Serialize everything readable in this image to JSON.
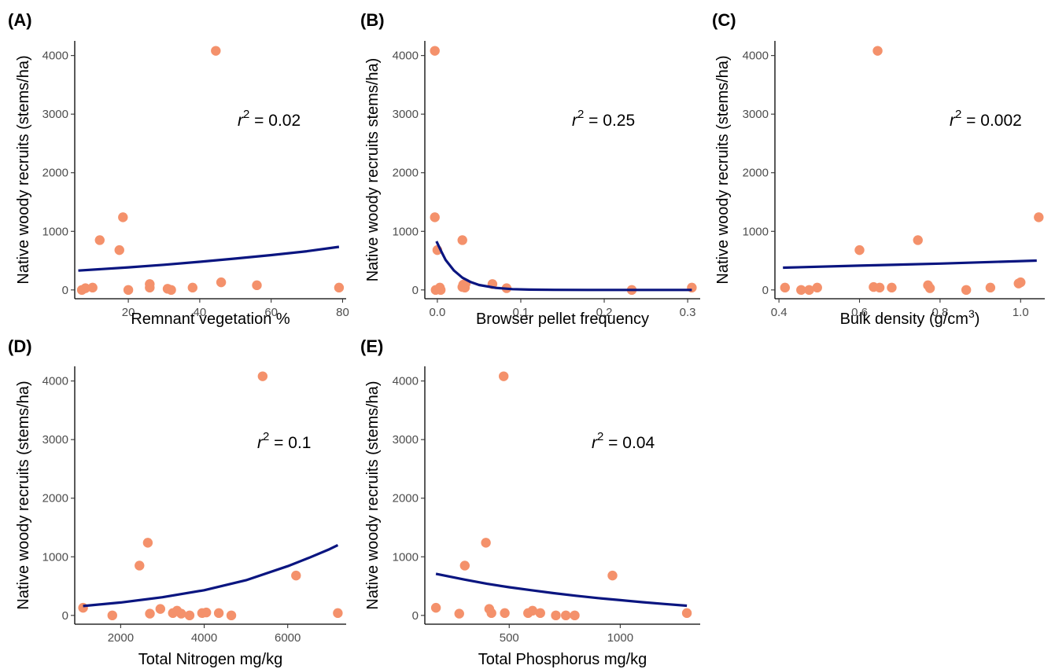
{
  "chart_data": [
    {
      "type": "scatter",
      "panel": "(A)",
      "xlabel": "Remnant vegetation %",
      "ylabel": "Native woody recruits (stems/ha)",
      "annotation": {
        "r2": "0.02"
      },
      "xlim": [
        5,
        81
      ],
      "ylim": [
        -150,
        4250
      ],
      "xticks": [
        20,
        40,
        60,
        80
      ],
      "yticks": [
        0,
        1000,
        2000,
        3000,
        4000
      ],
      "point_color": "#f4916b",
      "fit_color": "#0a1580",
      "points": [
        {
          "x": 7,
          "y": 0
        },
        {
          "x": 8,
          "y": 30
        },
        {
          "x": 10,
          "y": 40
        },
        {
          "x": 12,
          "y": 850
        },
        {
          "x": 17.5,
          "y": 680
        },
        {
          "x": 18.5,
          "y": 1240
        },
        {
          "x": 20,
          "y": 0
        },
        {
          "x": 26,
          "y": 40
        },
        {
          "x": 26,
          "y": 100
        },
        {
          "x": 31,
          "y": 20
        },
        {
          "x": 32,
          "y": 0
        },
        {
          "x": 38,
          "y": 40
        },
        {
          "x": 44.5,
          "y": 4080
        },
        {
          "x": 46,
          "y": 130
        },
        {
          "x": 56,
          "y": 80
        },
        {
          "x": 79,
          "y": 40
        }
      ],
      "fit": {
        "x": [
          6,
          20,
          30,
          40,
          50,
          60,
          70,
          79
        ],
        "y": [
          330,
          385,
          430,
          480,
          535,
          595,
          660,
          735
        ]
      }
    },
    {
      "type": "scatter",
      "panel": "(B)",
      "xlabel": "Browser pellet frequency",
      "ylabel": "Native woody recruits stems/ha)",
      "annotation": {
        "r2": "0.25"
      },
      "xlim": [
        -0.015,
        0.315
      ],
      "ylim": [
        -150,
        4250
      ],
      "xticks": [
        0.0,
        0.1,
        0.2,
        0.3
      ],
      "yticks": [
        0,
        1000,
        2000,
        3000,
        4000
      ],
      "point_color": "#f4916b",
      "fit_color": "#0a1580",
      "points": [
        {
          "x": -0.003,
          "y": 4080
        },
        {
          "x": -0.003,
          "y": 1240
        },
        {
          "x": -0.002,
          "y": 0
        },
        {
          "x": 0.0,
          "y": 680
        },
        {
          "x": 0.003,
          "y": 40
        },
        {
          "x": 0.004,
          "y": 0
        },
        {
          "x": 0.03,
          "y": 850
        },
        {
          "x": 0.03,
          "y": 50
        },
        {
          "x": 0.031,
          "y": 90
        },
        {
          "x": 0.033,
          "y": 40
        },
        {
          "x": 0.034,
          "y": 110
        },
        {
          "x": 0.066,
          "y": 100
        },
        {
          "x": 0.083,
          "y": 30
        },
        {
          "x": 0.233,
          "y": 0
        },
        {
          "x": 0.305,
          "y": 40
        }
      ],
      "fit": {
        "x": [
          -0.001,
          0.005,
          0.01,
          0.02,
          0.03,
          0.04,
          0.05,
          0.07,
          0.09,
          0.11,
          0.14,
          0.18,
          0.22,
          0.26,
          0.305
        ],
        "y": [
          830,
          650,
          510,
          330,
          210,
          135,
          85,
          35,
          14,
          6,
          2,
          0,
          0,
          0,
          0
        ]
      }
    },
    {
      "type": "scatter",
      "panel": "(C)",
      "xlabel": "Bulk density (g/cm",
      "xlabel_sup": "3",
      "xlabel_tail": ")",
      "ylabel": "Native woody recruits (stems/ha)",
      "annotation": {
        "r2": "0.002"
      },
      "xlim": [
        0.39,
        1.06
      ],
      "ylim": [
        -150,
        4250
      ],
      "xticks": [
        0.4,
        0.6,
        0.8,
        1.0
      ],
      "yticks": [
        0,
        1000,
        2000,
        3000,
        4000
      ],
      "point_color": "#f4916b",
      "fit_color": "#0a1580",
      "points": [
        {
          "x": 0.415,
          "y": 40
        },
        {
          "x": 0.455,
          "y": 0
        },
        {
          "x": 0.475,
          "y": 0
        },
        {
          "x": 0.495,
          "y": 40
        },
        {
          "x": 0.6,
          "y": 680
        },
        {
          "x": 0.635,
          "y": 50
        },
        {
          "x": 0.645,
          "y": 4080
        },
        {
          "x": 0.65,
          "y": 40
        },
        {
          "x": 0.68,
          "y": 40
        },
        {
          "x": 0.745,
          "y": 850
        },
        {
          "x": 0.77,
          "y": 80
        },
        {
          "x": 0.775,
          "y": 30
        },
        {
          "x": 0.865,
          "y": 0
        },
        {
          "x": 0.925,
          "y": 40
        },
        {
          "x": 0.995,
          "y": 110
        },
        {
          "x": 1.0,
          "y": 130
        },
        {
          "x": 1.045,
          "y": 1240
        }
      ],
      "fit": {
        "x": [
          0.41,
          0.6,
          0.8,
          1.04
        ],
        "y": [
          380,
          415,
          450,
          500
        ]
      }
    },
    {
      "type": "scatter",
      "panel": "(D)",
      "xlabel": "Total Nitrogen mg/kg",
      "ylabel": "Native woody recruits (stems/ha)",
      "annotation": {
        "r2": "0.1"
      },
      "xlim": [
        900,
        7400
      ],
      "ylim": [
        -150,
        4250
      ],
      "xticks": [
        2000,
        4000,
        6000
      ],
      "yticks": [
        0,
        1000,
        2000,
        3000,
        4000
      ],
      "point_color": "#f4916b",
      "fit_color": "#0a1580",
      "points": [
        {
          "x": 1100,
          "y": 130
        },
        {
          "x": 1800,
          "y": 0
        },
        {
          "x": 2450,
          "y": 850
        },
        {
          "x": 2650,
          "y": 1240
        },
        {
          "x": 2700,
          "y": 30
        },
        {
          "x": 2950,
          "y": 110
        },
        {
          "x": 3250,
          "y": 40
        },
        {
          "x": 3350,
          "y": 80
        },
        {
          "x": 3450,
          "y": 30
        },
        {
          "x": 3650,
          "y": 0
        },
        {
          "x": 3950,
          "y": 40
        },
        {
          "x": 4050,
          "y": 50
        },
        {
          "x": 4350,
          "y": 40
        },
        {
          "x": 4650,
          "y": 0
        },
        {
          "x": 5400,
          "y": 4080
        },
        {
          "x": 6200,
          "y": 680
        },
        {
          "x": 7200,
          "y": 40
        }
      ],
      "fit": {
        "x": [
          1100,
          2000,
          3000,
          4000,
          5000,
          6000,
          6500,
          7000,
          7200
        ],
        "y": [
          160,
          220,
          310,
          430,
          600,
          840,
          980,
          1130,
          1200
        ]
      }
    },
    {
      "type": "scatter",
      "panel": "(E)",
      "xlabel": "Total Phosphorus mg/kg",
      "ylabel": "Native woody recruits (stems/ha)",
      "annotation": {
        "r2": "0.04"
      },
      "xlim": [
        120,
        1360
      ],
      "ylim": [
        -150,
        4250
      ],
      "xticks": [
        500,
        1000
      ],
      "yticks": [
        0,
        1000,
        2000,
        3000,
        4000
      ],
      "point_color": "#f4916b",
      "fit_color": "#0a1580",
      "points": [
        {
          "x": 170,
          "y": 130
        },
        {
          "x": 275,
          "y": 30
        },
        {
          "x": 300,
          "y": 850
        },
        {
          "x": 395,
          "y": 1240
        },
        {
          "x": 410,
          "y": 110
        },
        {
          "x": 420,
          "y": 40
        },
        {
          "x": 475,
          "y": 4080
        },
        {
          "x": 480,
          "y": 40
        },
        {
          "x": 585,
          "y": 40
        },
        {
          "x": 605,
          "y": 80
        },
        {
          "x": 640,
          "y": 40
        },
        {
          "x": 710,
          "y": 0
        },
        {
          "x": 755,
          "y": 0
        },
        {
          "x": 795,
          "y": 0
        },
        {
          "x": 965,
          "y": 680
        },
        {
          "x": 1300,
          "y": 40
        }
      ],
      "fit": {
        "x": [
          170,
          300,
          400,
          500,
          600,
          700,
          800,
          900,
          1000,
          1100,
          1200,
          1300
        ],
        "y": [
          710,
          610,
          540,
          480,
          430,
          380,
          335,
          295,
          260,
          225,
          195,
          165
        ]
      }
    }
  ]
}
